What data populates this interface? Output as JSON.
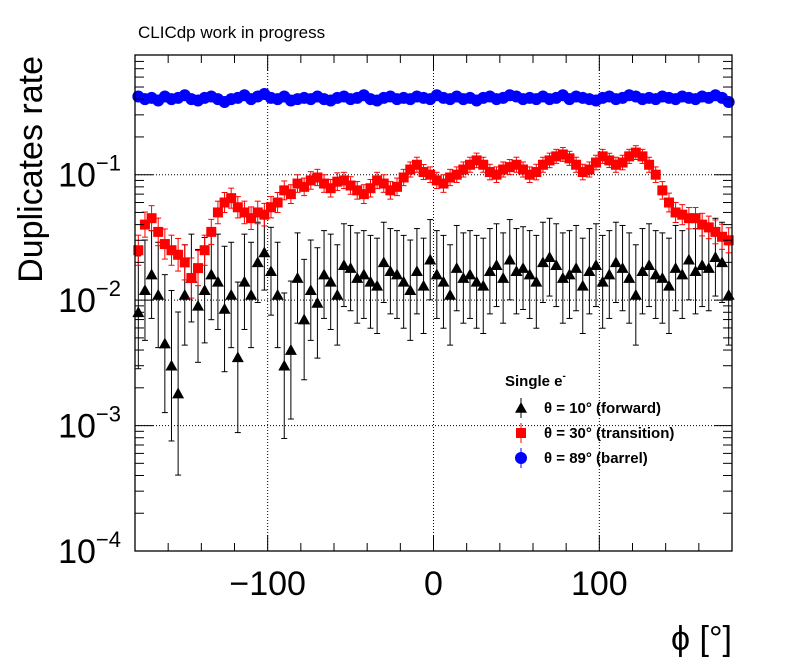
{
  "chart_data": {
    "type": "scatter",
    "annotation": "CLICdp work in progress",
    "xlabel": "ϕ [°]",
    "ylabel": "Duplicates rate",
    "xlim": [
      -180,
      180
    ],
    "ylim": [
      0.0001,
      0.9
    ],
    "y_scale": "log",
    "grid": true,
    "x_ticks": [
      -100,
      0,
      100
    ],
    "x_tick_labels": [
      "−100",
      "0",
      "100"
    ],
    "y_ticks": [
      {
        "value": 0.0001,
        "base": "10",
        "exp": "−4"
      },
      {
        "value": 0.001,
        "base": "10",
        "exp": "−3"
      },
      {
        "value": 0.01,
        "base": "10",
        "exp": "−2"
      },
      {
        "value": 0.1,
        "base": "10",
        "exp": "−1"
      }
    ],
    "legend": {
      "header_main": "Single e",
      "header_sup": "-",
      "placement": "center-right"
    },
    "series": [
      {
        "name": "θ = 10° (forward)",
        "marker": "triangle",
        "color": "#000000",
        "x": [
          -178,
          -174,
          -170,
          -166,
          -162,
          -158,
          -154,
          -150,
          -146,
          -142,
          -138,
          -134,
          -130,
          -126,
          -122,
          -118,
          -114,
          -110,
          -106,
          -102,
          -98,
          -94,
          -90,
          -86,
          -82,
          -78,
          -74,
          -70,
          -66,
          -62,
          -58,
          -54,
          -50,
          -46,
          -42,
          -38,
          -34,
          -30,
          -26,
          -22,
          -18,
          -14,
          -10,
          -6,
          -2,
          2,
          6,
          10,
          14,
          18,
          22,
          26,
          30,
          34,
          38,
          42,
          46,
          50,
          54,
          58,
          62,
          66,
          70,
          74,
          78,
          82,
          86,
          90,
          94,
          98,
          102,
          106,
          110,
          114,
          118,
          122,
          126,
          130,
          134,
          138,
          142,
          146,
          150,
          154,
          158,
          162,
          166,
          170,
          174,
          178
        ],
        "y": [
          0.008,
          0.012,
          0.016,
          0.011,
          0.0045,
          0.003,
          0.0018,
          0.011,
          0.015,
          0.009,
          0.012,
          0.016,
          0.014,
          0.0085,
          0.011,
          0.0035,
          0.014,
          0.011,
          0.02,
          0.024,
          0.017,
          0.011,
          0.003,
          0.004,
          0.015,
          0.007,
          0.012,
          0.0095,
          0.016,
          0.014,
          0.011,
          0.019,
          0.018,
          0.015,
          0.016,
          0.014,
          0.013,
          0.02,
          0.017,
          0.016,
          0.014,
          0.012,
          0.017,
          0.013,
          0.021,
          0.016,
          0.014,
          0.011,
          0.018,
          0.015,
          0.016,
          0.014,
          0.013,
          0.017,
          0.019,
          0.015,
          0.021,
          0.017,
          0.018,
          0.016,
          0.014,
          0.02,
          0.022,
          0.019,
          0.015,
          0.016,
          0.018,
          0.013,
          0.017,
          0.019,
          0.014,
          0.016,
          0.02,
          0.018,
          0.015,
          0.011,
          0.017,
          0.019,
          0.016,
          0.015,
          0.013,
          0.018,
          0.016,
          0.021,
          0.017,
          0.019,
          0.018,
          0.022,
          0.02,
          0.011
        ],
        "err": [
          0.45,
          0.4,
          0.35,
          0.42,
          0.55,
          0.6,
          0.65,
          0.4,
          0.35,
          0.45,
          0.42,
          0.36,
          0.38,
          0.5,
          0.42,
          0.6,
          0.38,
          0.42,
          0.32,
          0.3,
          0.35,
          0.42,
          0.58,
          0.55,
          0.36,
          0.48,
          0.4,
          0.44,
          0.35,
          0.38,
          0.4,
          0.33,
          0.34,
          0.36,
          0.35,
          0.37,
          0.38,
          0.32,
          0.34,
          0.35,
          0.37,
          0.4,
          0.34,
          0.38,
          0.32,
          0.35,
          0.37,
          0.4,
          0.34,
          0.36,
          0.35,
          0.37,
          0.38,
          0.34,
          0.33,
          0.36,
          0.32,
          0.34,
          0.33,
          0.35,
          0.37,
          0.32,
          0.31,
          0.33,
          0.36,
          0.35,
          0.34,
          0.38,
          0.34,
          0.33,
          0.37,
          0.35,
          0.32,
          0.34,
          0.36,
          0.4,
          0.34,
          0.33,
          0.35,
          0.36,
          0.38,
          0.34,
          0.35,
          0.32,
          0.34,
          0.33,
          0.34,
          0.31,
          0.32,
          0.4
        ]
      },
      {
        "name": "θ = 30° (transition)",
        "marker": "square",
        "color": "#ff0000",
        "x": [
          -178,
          -174,
          -170,
          -166,
          -162,
          -158,
          -154,
          -150,
          -146,
          -142,
          -138,
          -134,
          -130,
          -126,
          -122,
          -118,
          -114,
          -110,
          -106,
          -102,
          -98,
          -94,
          -90,
          -86,
          -82,
          -78,
          -74,
          -70,
          -66,
          -62,
          -58,
          -54,
          -50,
          -46,
          -42,
          -38,
          -34,
          -30,
          -26,
          -22,
          -18,
          -14,
          -10,
          -6,
          -2,
          2,
          6,
          10,
          14,
          18,
          22,
          26,
          30,
          34,
          38,
          42,
          46,
          50,
          54,
          58,
          62,
          66,
          70,
          74,
          78,
          82,
          86,
          90,
          94,
          98,
          102,
          106,
          110,
          114,
          118,
          122,
          126,
          130,
          134,
          138,
          142,
          146,
          150,
          154,
          158,
          162,
          166,
          170,
          174,
          178
        ],
        "y": [
          0.025,
          0.04,
          0.045,
          0.035,
          0.028,
          0.025,
          0.023,
          0.02,
          0.015,
          0.018,
          0.025,
          0.035,
          0.05,
          0.06,
          0.065,
          0.055,
          0.05,
          0.045,
          0.05,
          0.048,
          0.055,
          0.06,
          0.075,
          0.07,
          0.085,
          0.08,
          0.09,
          0.095,
          0.085,
          0.078,
          0.088,
          0.09,
          0.082,
          0.075,
          0.07,
          0.078,
          0.09,
          0.085,
          0.075,
          0.08,
          0.095,
          0.11,
          0.12,
          0.105,
          0.1,
          0.09,
          0.085,
          0.095,
          0.1,
          0.11,
          0.12,
          0.13,
          0.12,
          0.105,
          0.1,
          0.11,
          0.115,
          0.12,
          0.11,
          0.1,
          0.105,
          0.12,
          0.13,
          0.14,
          0.145,
          0.135,
          0.12,
          0.105,
          0.11,
          0.125,
          0.14,
          0.13,
          0.12,
          0.125,
          0.14,
          0.15,
          0.14,
          0.12,
          0.1,
          0.075,
          0.06,
          0.05,
          0.048,
          0.045,
          0.045,
          0.04,
          0.038,
          0.035,
          0.032,
          0.03
        ],
        "err": [
          0.12,
          0.1,
          0.1,
          0.11,
          0.12,
          0.12,
          0.13,
          0.14,
          0.16,
          0.14,
          0.12,
          0.1,
          0.09,
          0.08,
          0.08,
          0.085,
          0.09,
          0.09,
          0.09,
          0.09,
          0.085,
          0.08,
          0.075,
          0.075,
          0.07,
          0.07,
          0.07,
          0.065,
          0.07,
          0.07,
          0.07,
          0.065,
          0.07,
          0.07,
          0.075,
          0.07,
          0.065,
          0.07,
          0.07,
          0.07,
          0.065,
          0.06,
          0.06,
          0.06,
          0.062,
          0.065,
          0.07,
          0.065,
          0.062,
          0.06,
          0.06,
          0.058,
          0.06,
          0.062,
          0.062,
          0.06,
          0.06,
          0.06,
          0.06,
          0.062,
          0.062,
          0.06,
          0.058,
          0.056,
          0.055,
          0.056,
          0.06,
          0.062,
          0.06,
          0.058,
          0.056,
          0.057,
          0.06,
          0.058,
          0.056,
          0.055,
          0.056,
          0.06,
          0.062,
          0.07,
          0.075,
          0.08,
          0.08,
          0.085,
          0.085,
          0.09,
          0.09,
          0.095,
          0.1,
          0.1
        ]
      },
      {
        "name": "θ = 89° (barrel)",
        "marker": "circle",
        "color": "#0000ff",
        "x": [
          -178,
          -174,
          -170,
          -166,
          -162,
          -158,
          -154,
          -150,
          -146,
          -142,
          -138,
          -134,
          -130,
          -126,
          -122,
          -118,
          -114,
          -110,
          -106,
          -102,
          -98,
          -94,
          -90,
          -86,
          -82,
          -78,
          -74,
          -70,
          -66,
          -62,
          -58,
          -54,
          -50,
          -46,
          -42,
          -38,
          -34,
          -30,
          -26,
          -22,
          -18,
          -14,
          -10,
          -6,
          -2,
          2,
          6,
          10,
          14,
          18,
          22,
          26,
          30,
          34,
          38,
          42,
          46,
          50,
          54,
          58,
          62,
          66,
          70,
          74,
          78,
          82,
          86,
          90,
          94,
          98,
          102,
          106,
          110,
          114,
          118,
          122,
          126,
          130,
          134,
          138,
          142,
          146,
          150,
          154,
          158,
          162,
          166,
          170,
          174,
          178
        ],
        "y": [
          0.42,
          0.4,
          0.41,
          0.39,
          0.42,
          0.4,
          0.41,
          0.43,
          0.4,
          0.39,
          0.41,
          0.42,
          0.4,
          0.38,
          0.4,
          0.41,
          0.43,
          0.4,
          0.42,
          0.44,
          0.41,
          0.4,
          0.42,
          0.39,
          0.4,
          0.41,
          0.4,
          0.42,
          0.4,
          0.39,
          0.41,
          0.42,
          0.4,
          0.41,
          0.43,
          0.4,
          0.39,
          0.41,
          0.42,
          0.4,
          0.41,
          0.4,
          0.42,
          0.41,
          0.4,
          0.43,
          0.41,
          0.4,
          0.42,
          0.4,
          0.41,
          0.39,
          0.41,
          0.42,
          0.4,
          0.41,
          0.43,
          0.42,
          0.4,
          0.41,
          0.4,
          0.42,
          0.4,
          0.41,
          0.43,
          0.4,
          0.42,
          0.41,
          0.4,
          0.39,
          0.41,
          0.42,
          0.4,
          0.41,
          0.43,
          0.42,
          0.4,
          0.41,
          0.4,
          0.42,
          0.41,
          0.4,
          0.42,
          0.41,
          0.4,
          0.42,
          0.41,
          0.43,
          0.41,
          0.38
        ],
        "err": []
      }
    ]
  }
}
